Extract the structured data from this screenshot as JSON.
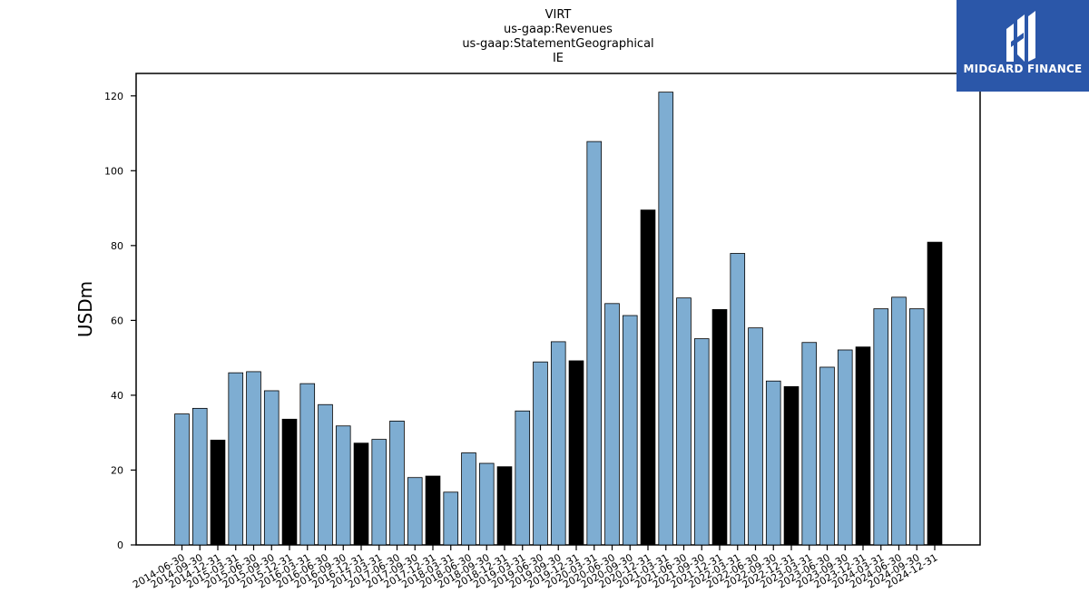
{
  "chart_data": {
    "type": "bar",
    "title_lines": [
      "VIRT",
      "us-gaap:Revenues",
      "us-gaap:StatementGeographical",
      "IE"
    ],
    "xlabel": "",
    "ylabel": "USDm",
    "ylim": [
      0,
      126
    ],
    "yticks": [
      0,
      20,
      40,
      60,
      80,
      100,
      120
    ],
    "grid": false,
    "legend": "none",
    "colors": {
      "default": "#7eadd2",
      "highlight": "#000000",
      "edge": "#000000"
    },
    "categories": [
      "2014-06-30",
      "2014-09-30",
      "2014-12-31",
      "2015-03-31",
      "2015-06-30",
      "2015-09-30",
      "2015-12-31",
      "2016-03-31",
      "2016-06-30",
      "2016-09-30",
      "2016-12-31",
      "2017-03-31",
      "2017-06-30",
      "2017-09-30",
      "2017-12-31",
      "2018-03-31",
      "2018-06-30",
      "2018-09-30",
      "2018-12-31",
      "2019-03-31",
      "2019-06-30",
      "2019-09-30",
      "2019-12-31",
      "2020-03-31",
      "2020-06-30",
      "2020-09-30",
      "2020-12-31",
      "2021-03-31",
      "2021-06-30",
      "2021-09-30",
      "2021-12-31",
      "2022-03-31",
      "2022-06-30",
      "2022-09-30",
      "2022-12-31",
      "2023-03-31",
      "2023-06-30",
      "2023-09-30",
      "2023-12-31",
      "2024-03-31",
      "2024-06-30",
      "2024-09-30",
      "2024-12-31"
    ],
    "values": [
      35.0,
      36.5,
      28.0,
      46.0,
      46.3,
      41.2,
      33.6,
      43.1,
      37.5,
      31.8,
      27.2,
      28.2,
      33.1,
      18.0,
      18.4,
      14.1,
      24.6,
      21.8,
      20.9,
      35.8,
      48.9,
      54.3,
      49.2,
      107.8,
      64.5,
      61.3,
      89.5,
      121.0,
      66.0,
      55.1,
      62.9,
      77.9,
      58.0,
      43.8,
      42.3,
      54.1,
      47.5,
      52.1,
      52.9,
      63.1,
      66.2,
      63.1,
      80.9
    ],
    "highlight_indices": [
      2,
      6,
      10,
      14,
      18,
      22,
      26,
      30,
      34,
      38,
      42
    ]
  },
  "logo": {
    "text": "MIDGARD FINANCE",
    "icon": "midgard-logo-icon",
    "background": "#2b57a9"
  }
}
